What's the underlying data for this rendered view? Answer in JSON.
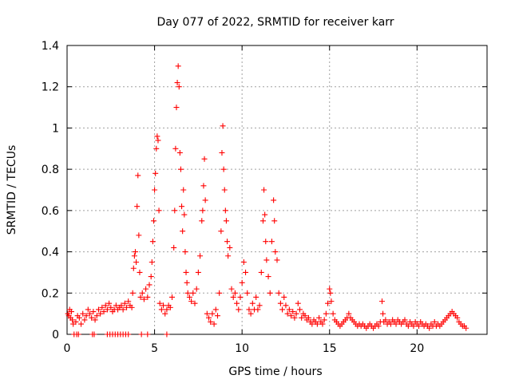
{
  "chart_data": {
    "type": "scatter",
    "title": "Day 077 of 2022, SRMTID for receiver karr",
    "xlabel": "GPS time / hours",
    "ylabel": "SRMTID / TECUs",
    "xlim": [
      0,
      24
    ],
    "ylim": [
      0,
      1.4
    ],
    "xticks": [
      0,
      5,
      10,
      15,
      20
    ],
    "xtick_labels": [
      "0",
      "5",
      "10",
      "15",
      "20"
    ],
    "yticks": [
      0,
      0.2,
      0.4,
      0.6,
      0.8,
      1.0,
      1.2,
      1.4
    ],
    "ytick_labels": [
      "0",
      "0.2",
      "0.4",
      "0.6",
      "0.8",
      "1",
      "1.2",
      "1.4"
    ],
    "grid": true,
    "marker": "plus",
    "color": "#ff0000",
    "series": [
      {
        "name": "karr",
        "points": [
          [
            0.05,
            0.1
          ],
          [
            0.1,
            0.09
          ],
          [
            0.15,
            0.12
          ],
          [
            0.2,
            0.08
          ],
          [
            0.25,
            0.11
          ],
          [
            0.3,
            0.07
          ],
          [
            0.35,
            0.05
          ],
          [
            0.5,
            0.06
          ],
          [
            0.6,
            0.09
          ],
          [
            0.7,
            0.08
          ],
          [
            0.8,
            0.05
          ],
          [
            0.9,
            0.1
          ],
          [
            1.0,
            0.07
          ],
          [
            1.1,
            0.09
          ],
          [
            1.2,
            0.12
          ],
          [
            1.3,
            0.1
          ],
          [
            1.4,
            0.08
          ],
          [
            1.5,
            0.11
          ],
          [
            1.6,
            0.07
          ],
          [
            1.7,
            0.09
          ],
          [
            1.8,
            0.12
          ],
          [
            1.9,
            0.1
          ],
          [
            2.0,
            0.13
          ],
          [
            2.1,
            0.11
          ],
          [
            2.2,
            0.14
          ],
          [
            2.3,
            0.12
          ],
          [
            2.4,
            0.15
          ],
          [
            2.5,
            0.13
          ],
          [
            2.6,
            0.11
          ],
          [
            2.7,
            0.12
          ],
          [
            2.8,
            0.14
          ],
          [
            2.9,
            0.12
          ],
          [
            3.0,
            0.13
          ],
          [
            3.1,
            0.14
          ],
          [
            3.2,
            0.12
          ],
          [
            3.3,
            0.15
          ],
          [
            3.4,
            0.13
          ],
          [
            3.5,
            0.16
          ],
          [
            3.6,
            0.14
          ],
          [
            3.7,
            0.13
          ],
          [
            3.75,
            0.2
          ],
          [
            3.8,
            0.32
          ],
          [
            3.85,
            0.38
          ],
          [
            3.9,
            0.4
          ],
          [
            3.95,
            0.35
          ],
          [
            4.0,
            0.62
          ],
          [
            4.05,
            0.77
          ],
          [
            4.1,
            0.48
          ],
          [
            4.15,
            0.3
          ],
          [
            4.2,
            0.18
          ],
          [
            4.3,
            0.2
          ],
          [
            4.4,
            0.17
          ],
          [
            4.5,
            0.22
          ],
          [
            4.6,
            0.18
          ],
          [
            4.7,
            0.24
          ],
          [
            4.8,
            0.28
          ],
          [
            4.85,
            0.35
          ],
          [
            4.9,
            0.45
          ],
          [
            4.95,
            0.55
          ],
          [
            5.0,
            0.7
          ],
          [
            5.05,
            0.78
          ],
          [
            5.1,
            0.9
          ],
          [
            5.15,
            0.96
          ],
          [
            5.2,
            0.94
          ],
          [
            5.25,
            0.6
          ],
          [
            5.3,
            0.15
          ],
          [
            5.4,
            0.12
          ],
          [
            5.5,
            0.14
          ],
          [
            5.6,
            0.1
          ],
          [
            5.7,
            0.12
          ],
          [
            5.8,
            0.14
          ],
          [
            5.9,
            0.13
          ],
          [
            6.0,
            0.18
          ],
          [
            6.1,
            0.42
          ],
          [
            6.15,
            0.6
          ],
          [
            6.2,
            0.9
          ],
          [
            6.25,
            1.1
          ],
          [
            6.3,
            1.22
          ],
          [
            6.35,
            1.3
          ],
          [
            6.4,
            1.2
          ],
          [
            6.45,
            0.88
          ],
          [
            6.5,
            0.8
          ],
          [
            6.55,
            0.62
          ],
          [
            6.6,
            0.5
          ],
          [
            6.65,
            0.7
          ],
          [
            6.7,
            0.58
          ],
          [
            6.75,
            0.4
          ],
          [
            6.8,
            0.3
          ],
          [
            6.85,
            0.25
          ],
          [
            6.9,
            0.2
          ],
          [
            7.0,
            0.18
          ],
          [
            7.1,
            0.16
          ],
          [
            7.2,
            0.2
          ],
          [
            7.3,
            0.15
          ],
          [
            7.4,
            0.22
          ],
          [
            7.5,
            0.3
          ],
          [
            7.6,
            0.38
          ],
          [
            7.7,
            0.55
          ],
          [
            7.75,
            0.6
          ],
          [
            7.8,
            0.72
          ],
          [
            7.85,
            0.85
          ],
          [
            7.9,
            0.65
          ],
          [
            8.0,
            0.1
          ],
          [
            8.1,
            0.08
          ],
          [
            8.2,
            0.06
          ],
          [
            8.3,
            0.1
          ],
          [
            8.4,
            0.05
          ],
          [
            8.5,
            0.12
          ],
          [
            8.6,
            0.09
          ],
          [
            8.7,
            0.2
          ],
          [
            8.8,
            0.5
          ],
          [
            8.85,
            0.88
          ],
          [
            8.9,
            1.01
          ],
          [
            8.95,
            0.8
          ],
          [
            9.0,
            0.7
          ],
          [
            9.05,
            0.6
          ],
          [
            9.1,
            0.55
          ],
          [
            9.15,
            0.45
          ],
          [
            9.2,
            0.38
          ],
          [
            9.3,
            0.42
          ],
          [
            9.4,
            0.22
          ],
          [
            9.5,
            0.18
          ],
          [
            9.6,
            0.2
          ],
          [
            9.7,
            0.15
          ],
          [
            9.8,
            0.12
          ],
          [
            9.9,
            0.18
          ],
          [
            10.0,
            0.25
          ],
          [
            10.1,
            0.35
          ],
          [
            10.2,
            0.3
          ],
          [
            10.3,
            0.2
          ],
          [
            10.4,
            0.12
          ],
          [
            10.5,
            0.1
          ],
          [
            10.6,
            0.15
          ],
          [
            10.7,
            0.12
          ],
          [
            10.8,
            0.18
          ],
          [
            10.9,
            0.12
          ],
          [
            11.0,
            0.14
          ],
          [
            11.1,
            0.3
          ],
          [
            11.2,
            0.55
          ],
          [
            11.25,
            0.7
          ],
          [
            11.3,
            0.58
          ],
          [
            11.35,
            0.45
          ],
          [
            11.4,
            0.36
          ],
          [
            11.5,
            0.28
          ],
          [
            11.6,
            0.2
          ],
          [
            11.7,
            0.45
          ],
          [
            11.8,
            0.65
          ],
          [
            11.85,
            0.55
          ],
          [
            11.9,
            0.4
          ],
          [
            12.0,
            0.36
          ],
          [
            12.1,
            0.2
          ],
          [
            12.2,
            0.15
          ],
          [
            12.3,
            0.12
          ],
          [
            12.4,
            0.18
          ],
          [
            12.5,
            0.14
          ],
          [
            12.6,
            0.1
          ],
          [
            12.7,
            0.12
          ],
          [
            12.8,
            0.09
          ],
          [
            12.9,
            0.11
          ],
          [
            13.0,
            0.08
          ],
          [
            13.1,
            0.1
          ],
          [
            13.2,
            0.15
          ],
          [
            13.3,
            0.12
          ],
          [
            13.4,
            0.08
          ],
          [
            13.5,
            0.1
          ],
          [
            13.6,
            0.09
          ],
          [
            13.7,
            0.07
          ],
          [
            13.8,
            0.08
          ],
          [
            13.9,
            0.06
          ],
          [
            14.0,
            0.05
          ],
          [
            14.1,
            0.07
          ],
          [
            14.2,
            0.06
          ],
          [
            14.3,
            0.05
          ],
          [
            14.4,
            0.08
          ],
          [
            14.5,
            0.06
          ],
          [
            14.6,
            0.05
          ],
          [
            14.7,
            0.07
          ],
          [
            14.8,
            0.1
          ],
          [
            14.9,
            0.15
          ],
          [
            15.0,
            0.22
          ],
          [
            15.05,
            0.2
          ],
          [
            15.1,
            0.16
          ],
          [
            15.2,
            0.1
          ],
          [
            15.3,
            0.07
          ],
          [
            15.4,
            0.06
          ],
          [
            15.5,
            0.05
          ],
          [
            15.6,
            0.04
          ],
          [
            15.7,
            0.05
          ],
          [
            15.8,
            0.06
          ],
          [
            15.9,
            0.07
          ],
          [
            16.0,
            0.08
          ],
          [
            16.1,
            0.1
          ],
          [
            16.2,
            0.08
          ],
          [
            16.3,
            0.07
          ],
          [
            16.4,
            0.06
          ],
          [
            16.5,
            0.05
          ],
          [
            16.6,
            0.04
          ],
          [
            16.7,
            0.05
          ],
          [
            16.8,
            0.04
          ],
          [
            16.9,
            0.05
          ],
          [
            17.0,
            0.04
          ],
          [
            17.1,
            0.03
          ],
          [
            17.2,
            0.04
          ],
          [
            17.3,
            0.05
          ],
          [
            17.4,
            0.04
          ],
          [
            17.5,
            0.03
          ],
          [
            17.6,
            0.04
          ],
          [
            17.7,
            0.05
          ],
          [
            17.8,
            0.04
          ],
          [
            17.9,
            0.06
          ],
          [
            18.0,
            0.16
          ],
          [
            18.05,
            0.1
          ],
          [
            18.1,
            0.06
          ],
          [
            18.2,
            0.07
          ],
          [
            18.3,
            0.05
          ],
          [
            18.4,
            0.06
          ],
          [
            18.5,
            0.05
          ],
          [
            18.6,
            0.07
          ],
          [
            18.7,
            0.06
          ],
          [
            18.8,
            0.05
          ],
          [
            18.9,
            0.07
          ],
          [
            19.0,
            0.06
          ],
          [
            19.1,
            0.05
          ],
          [
            19.2,
            0.06
          ],
          [
            19.3,
            0.07
          ],
          [
            19.4,
            0.05
          ],
          [
            19.5,
            0.04
          ],
          [
            19.6,
            0.06
          ],
          [
            19.7,
            0.05
          ],
          [
            19.8,
            0.04
          ],
          [
            19.9,
            0.06
          ],
          [
            20.0,
            0.05
          ],
          [
            20.1,
            0.04
          ],
          [
            20.2,
            0.06
          ],
          [
            20.3,
            0.05
          ],
          [
            20.4,
            0.04
          ],
          [
            20.5,
            0.05
          ],
          [
            20.6,
            0.04
          ],
          [
            20.7,
            0.03
          ],
          [
            20.8,
            0.05
          ],
          [
            20.9,
            0.04
          ],
          [
            21.0,
            0.06
          ],
          [
            21.1,
            0.04
          ],
          [
            21.2,
            0.05
          ],
          [
            21.3,
            0.04
          ],
          [
            21.4,
            0.05
          ],
          [
            21.5,
            0.06
          ],
          [
            21.6,
            0.07
          ],
          [
            21.7,
            0.08
          ],
          [
            21.8,
            0.09
          ],
          [
            21.9,
            0.1
          ],
          [
            22.0,
            0.11
          ],
          [
            22.1,
            0.1
          ],
          [
            22.2,
            0.09
          ],
          [
            22.3,
            0.08
          ],
          [
            22.4,
            0.06
          ],
          [
            22.5,
            0.05
          ],
          [
            22.6,
            0.04
          ],
          [
            22.7,
            0.04
          ],
          [
            22.8,
            0.03
          ],
          [
            0.4,
            0.0
          ],
          [
            0.55,
            0.0
          ],
          [
            0.65,
            0.0
          ],
          [
            1.45,
            0.0
          ],
          [
            1.55,
            0.0
          ],
          [
            2.3,
            0.0
          ],
          [
            2.45,
            0.0
          ],
          [
            2.6,
            0.0
          ],
          [
            2.75,
            0.0
          ],
          [
            2.9,
            0.0
          ],
          [
            3.05,
            0.0
          ],
          [
            3.2,
            0.0
          ],
          [
            3.35,
            0.0
          ],
          [
            3.5,
            0.0
          ],
          [
            4.25,
            0.0
          ],
          [
            4.6,
            0.0
          ],
          [
            5.7,
            0.0
          ]
        ]
      }
    ]
  }
}
